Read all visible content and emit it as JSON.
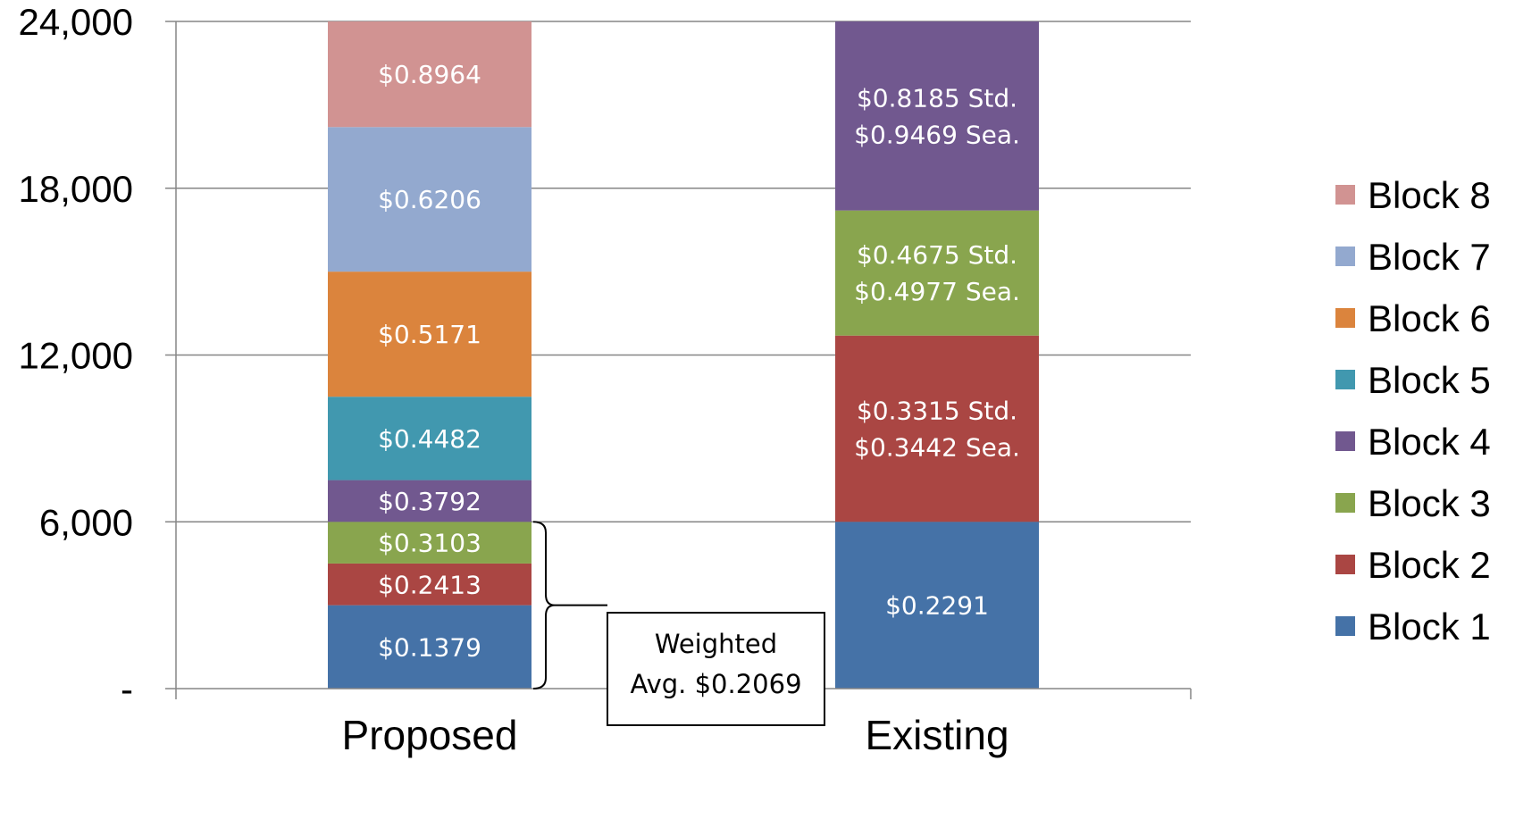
{
  "chart_data": {
    "type": "bar",
    "stacked": true,
    "title": "",
    "xlabel": "",
    "ylabel": "",
    "ylim": [
      0,
      24000
    ],
    "yticks": [
      {
        "value": 0,
        "label": "-"
      },
      {
        "value": 6000,
        "label": "6,000"
      },
      {
        "value": 12000,
        "label": "12,000"
      },
      {
        "value": 18000,
        "label": "18,000"
      },
      {
        "value": 24000,
        "label": "24,000"
      }
    ],
    "grid": true,
    "legend_position": "right",
    "categories": [
      "Proposed",
      "Existing"
    ],
    "series": [
      {
        "name": "Block 1",
        "color": "#4572A7",
        "values": [
          3000,
          6000
        ],
        "labels": [
          [
            "$0.1379"
          ],
          [
            "$0.2291"
          ]
        ]
      },
      {
        "name": "Block 2",
        "color": "#AA4643",
        "values": [
          1500,
          6700
        ],
        "labels": [
          [
            "$0.2413"
          ],
          [
            "$0.3315 Std.",
            "$0.3442 Sea."
          ]
        ]
      },
      {
        "name": "Block 3",
        "color": "#89A54E",
        "values": [
          1500,
          4500
        ],
        "labels": [
          [
            "$0.3103"
          ],
          [
            "$0.4675 Std.",
            "$0.4977 Sea."
          ]
        ]
      },
      {
        "name": "Block 4",
        "color": "#71588F",
        "values": [
          1500,
          6800
        ],
        "labels": [
          [
            "$0.3792"
          ],
          [
            "$0.8185 Std.",
            "$0.9469 Sea."
          ]
        ]
      },
      {
        "name": "Block 5",
        "color": "#4198AF",
        "values": [
          3000,
          0
        ],
        "labels": [
          [
            "$0.4482"
          ],
          []
        ]
      },
      {
        "name": "Block 6",
        "color": "#DB843D",
        "values": [
          4500,
          0
        ],
        "labels": [
          [
            "$0.5171"
          ],
          []
        ]
      },
      {
        "name": "Block 7",
        "color": "#93A9CF",
        "values": [
          5200,
          0
        ],
        "labels": [
          [
            "$0.6206"
          ],
          []
        ]
      },
      {
        "name": "Block 8",
        "color": "#D19392",
        "values": [
          3800,
          0
        ],
        "labels": [
          [
            "$0.8964"
          ],
          []
        ]
      }
    ],
    "annotation": {
      "lines": [
        "Weighted",
        "Avg. $0.2069"
      ],
      "category": "Proposed",
      "range": [
        0,
        6000
      ]
    }
  }
}
